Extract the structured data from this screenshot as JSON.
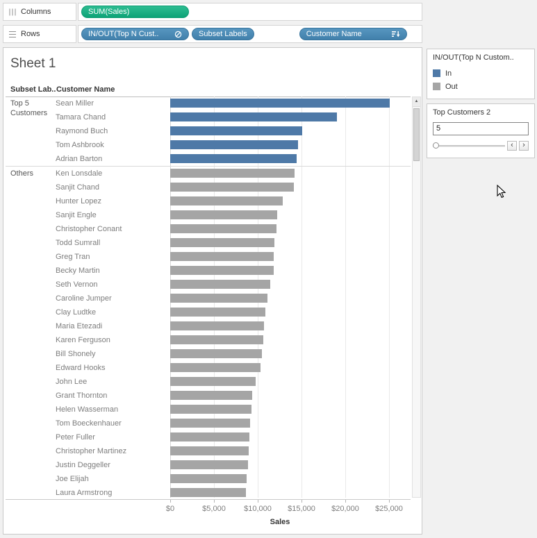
{
  "shelves": {
    "columns": {
      "label": "Columns",
      "pills": [
        {
          "text": "SUM(Sales)",
          "kind": "measure"
        }
      ]
    },
    "rows": {
      "label": "Rows",
      "pills": [
        {
          "text": "IN/OUT(Top N Cust..",
          "kind": "dimension",
          "icon": "combined-set"
        },
        {
          "text": "Subset Labels",
          "kind": "dimension"
        },
        {
          "text": "Customer Name",
          "kind": "dimension",
          "icon": "sort-descending"
        }
      ]
    }
  },
  "sheet": {
    "title": "Sheet 1"
  },
  "chart_data": {
    "type": "bar",
    "orientation": "horizontal",
    "title": "Sheet 1",
    "column_headers": [
      "Subset Lab..",
      "Customer Name"
    ],
    "xlabel": "Sales",
    "x_ticks": [
      {
        "label": "$0",
        "value": 0
      },
      {
        "label": "$5,000",
        "value": 5000
      },
      {
        "label": "$10,000",
        "value": 10000
      },
      {
        "label": "$15,000",
        "value": 15000
      },
      {
        "label": "$20,000",
        "value": 20000
      },
      {
        "label": "$25,000",
        "value": 25000
      }
    ],
    "x_axis_max": 27800,
    "colors": {
      "in": "#4e79a7",
      "out": "#a5a5a5"
    },
    "groups": [
      {
        "label": "Top 5 Customers",
        "in_out": "in",
        "rows": [
          {
            "name": "Sean Miller",
            "sales": 25050
          },
          {
            "name": "Tamara Chand",
            "sales": 19050
          },
          {
            "name": "Raymond Buch",
            "sales": 15100
          },
          {
            "name": "Tom Ashbrook",
            "sales": 14600
          },
          {
            "name": "Adrian Barton",
            "sales": 14450
          }
        ]
      },
      {
        "label": "Others",
        "in_out": "out",
        "rows": [
          {
            "name": "Ken Lonsdale",
            "sales": 14200
          },
          {
            "name": "Sanjit Chand",
            "sales": 14150
          },
          {
            "name": "Hunter Lopez",
            "sales": 12850
          },
          {
            "name": "Sanjit Engle",
            "sales": 12200
          },
          {
            "name": "Christopher Conant",
            "sales": 12150
          },
          {
            "name": "Todd Sumrall",
            "sales": 11900
          },
          {
            "name": "Greg Tran",
            "sales": 11800
          },
          {
            "name": "Becky Martin",
            "sales": 11800
          },
          {
            "name": "Seth Vernon",
            "sales": 11450
          },
          {
            "name": "Caroline Jumper",
            "sales": 11150
          },
          {
            "name": "Clay Ludtke",
            "sales": 10900
          },
          {
            "name": "Maria Etezadi",
            "sales": 10700
          },
          {
            "name": "Karen Ferguson",
            "sales": 10600
          },
          {
            "name": "Bill Shonely",
            "sales": 10500
          },
          {
            "name": "Edward Hooks",
            "sales": 10300
          },
          {
            "name": "John Lee",
            "sales": 9800
          },
          {
            "name": "Grant Thornton",
            "sales": 9350
          },
          {
            "name": "Helen Wasserman",
            "sales": 9300
          },
          {
            "name": "Tom Boeckenhauer",
            "sales": 9150
          },
          {
            "name": "Peter Fuller",
            "sales": 9050
          },
          {
            "name": "Christopher Martinez",
            "sales": 8950
          },
          {
            "name": "Justin Deggeller",
            "sales": 8850
          },
          {
            "name": "Joe Elijah",
            "sales": 8750
          },
          {
            "name": "Laura Armstrong",
            "sales": 8650
          }
        ]
      }
    ]
  },
  "legend": {
    "title": "IN/OUT(Top N Custom..",
    "items": [
      {
        "label": "In",
        "color": "#4e79a7"
      },
      {
        "label": "Out",
        "color": "#a5a5a5"
      }
    ]
  },
  "parameter": {
    "title": "Top Customers 2",
    "value": "5"
  },
  "icons": {
    "scroll_up": "▲",
    "decrement": "‹",
    "increment": "›"
  }
}
